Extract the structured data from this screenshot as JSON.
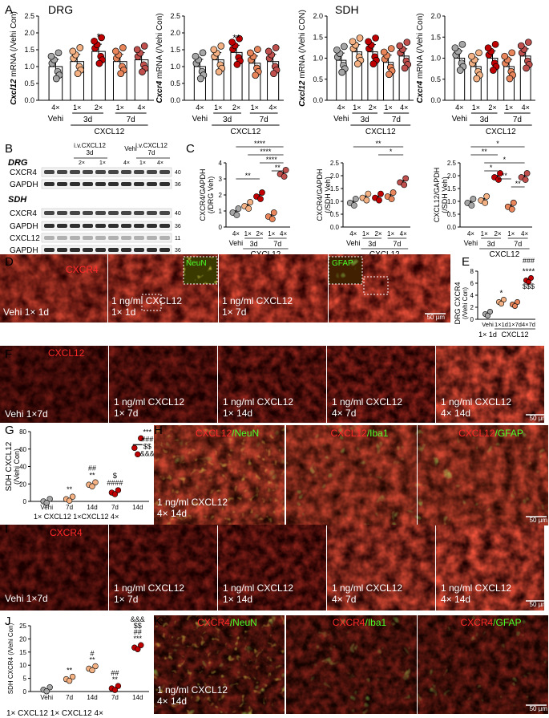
{
  "panel_letters": [
    "A",
    "B",
    "C",
    "D",
    "E",
    "F",
    "G",
    "H",
    "I",
    "J",
    "K"
  ],
  "panel_a": {
    "region_labels": [
      "DRG",
      "SDH"
    ],
    "x_doses": [
      "4×",
      "1×",
      "2×",
      "1×",
      "4×"
    ],
    "vehi": "Vehi",
    "groups": [
      "3d",
      "7d"
    ],
    "treatment": "CXCL12",
    "charts": [
      {
        "ylabel_gene": "Cxcl12",
        "ylabel_rest": " mRNA (/Vehi Con)",
        "ylim": [
          0,
          2.5
        ],
        "yticks": [
          "0.0",
          "0.5",
          "1.0",
          "1.5",
          "2.0",
          "2.5"
        ],
        "values": [
          1.0,
          1.15,
          1.45,
          1.15,
          1.2
        ],
        "sig": [
          "",
          "",
          "*",
          "",
          ""
        ]
      },
      {
        "ylabel_gene": "Cxcr4",
        "ylabel_rest": " mRNA (/Vehi Con)",
        "ylim": [
          0,
          2.5
        ],
        "yticks": [
          "0.0",
          "0.5",
          "1.0",
          "1.5",
          "2.0",
          "2.5"
        ],
        "values": [
          1.0,
          1.2,
          1.42,
          1.1,
          1.15
        ],
        "sig": [
          "",
          "",
          "**",
          "",
          ""
        ]
      },
      {
        "ylabel_gene": "Cxcl12",
        "ylabel_rest": " mRNA (/Vehi CON)",
        "ylim": [
          0,
          2.0
        ],
        "yticks": [
          "0.0",
          "0.5",
          "1.0",
          "1.5",
          "2.0"
        ],
        "values": [
          0.95,
          1.15,
          1.15,
          0.9,
          1.05
        ],
        "sig": [
          "",
          "",
          "",
          "",
          ""
        ]
      },
      {
        "ylabel_gene": "Cxcr4",
        "ylabel_rest": " mRNA (/Vehi Con)",
        "ylim": [
          0,
          2.0
        ],
        "yticks": [
          "0.0",
          "0.5",
          "1.0",
          "1.5",
          "2.0"
        ],
        "values": [
          1.0,
          0.8,
          1.0,
          0.8,
          1.05
        ],
        "sig": [
          "",
          "",
          "",
          "",
          ""
        ]
      }
    ]
  },
  "panel_b": {
    "header_3d": "i.v.CXCL12\n3d",
    "header_vehi": "Vehi",
    "header_7d": "i.v.CXCL12\n7d",
    "lane_labels": [
      "2×",
      "1×",
      "4×",
      "1×",
      "4×"
    ],
    "drg": "DRG",
    "sdh": "SDH",
    "blots": [
      {
        "name": "CXCR4",
        "kda": "40"
      },
      {
        "name": "GAPDH",
        "kda": "36"
      },
      {
        "name": "CXCR4",
        "kda": "40"
      },
      {
        "name": "GAPDH",
        "kda": "36"
      },
      {
        "name": "CXCL12",
        "kda": "11"
      },
      {
        "name": "GAPDH",
        "kda": "36"
      }
    ]
  },
  "panel_c": {
    "x_doses": [
      "4×",
      "1×",
      "2×",
      "1×",
      "4×"
    ],
    "charts": [
      {
        "ylabel": "CXCR4/GAPDH",
        "ylabel2": "(/DRG Veh)",
        "ylim": [
          0,
          4
        ],
        "yticks": [
          "0",
          "1",
          "2",
          "3",
          "4"
        ],
        "values": [
          1.0,
          1.4,
          2.0,
          0.75,
          3.4
        ],
        "brackets": [
          {
            "from": 0,
            "to": 4,
            "text": "****"
          },
          {
            "from": 1,
            "to": 4,
            "text": "****"
          },
          {
            "from": 2,
            "to": 4,
            "text": "****"
          },
          {
            "from": 3,
            "to": 4,
            "text": "**"
          },
          {
            "from": 0,
            "to": 2,
            "text": "**"
          }
        ]
      },
      {
        "ylabel": "CXCR4/GAPDH",
        "ylabel2": "(/SDH Veh)",
        "ylim": [
          0,
          2.5
        ],
        "yticks": [
          "0.0",
          "0.5",
          "1.0",
          "1.5",
          "2.0",
          "2.5"
        ],
        "values": [
          1.0,
          1.2,
          1.2,
          1.25,
          1.8
        ],
        "brackets": [
          {
            "from": 0,
            "to": 4,
            "text": "**"
          },
          {
            "from": 2,
            "to": 4,
            "text": "*"
          }
        ]
      },
      {
        "ylabel": "CXCL12/GAPDH",
        "ylabel2": "(/SDH Veh)",
        "ylim": [
          0,
          2.5
        ],
        "yticks": [
          "0.0",
          "0.5",
          "1.0",
          "1.5",
          "2.0",
          "2.5"
        ],
        "values": [
          1.0,
          1.1,
          2.0,
          0.85,
          2.0
        ],
        "brackets": [
          {
            "from": 0,
            "to": 4,
            "text": "*"
          },
          {
            "from": 0,
            "to": 2,
            "text": "**"
          },
          {
            "from": 1,
            "to": 4,
            "text": "*"
          },
          {
            "from": 1,
            "to": 2,
            "text": "*"
          },
          {
            "from": 2,
            "to": 3,
            "text": "**"
          },
          {
            "from": 3,
            "to": 4,
            "text": "**"
          }
        ]
      }
    ]
  },
  "panel_d": {
    "marker": "CXCR4",
    "insets": [
      "NeuN",
      "GFAP"
    ],
    "captions": [
      "Vehi 1× 1d",
      "1 ng/ml CXCL12\n1× 1d",
      "1 ng/ml CXCL12\n1× 7d",
      ""
    ],
    "scale": "50 µm"
  },
  "panel_e": {
    "ylabel": "DRG CXCR4",
    "ylabel2": "(/Vehi Con)",
    "ylim": [
      0,
      8
    ],
    "yticks": [
      "0",
      "2",
      "4",
      "6",
      "8"
    ],
    "values": [
      1.0,
      3.0,
      2.6,
      6.6
    ],
    "x_labels": [
      "Vehi",
      "1×1d",
      "1×7d",
      "4×7d"
    ],
    "x_bottom": "1× 1d",
    "treatment": "CXCL12",
    "sig": [
      "",
      "*",
      "",
      "****"
    ],
    "sig_top": "###",
    "sig_bottom": "$$$"
  },
  "panel_f": {
    "marker": "CXCL12",
    "captions": [
      "Vehi 1×7d",
      "1 ng/ml CXCL12\n1× 7d",
      "1 ng/ml CXCL12\n1× 14d",
      "1 ng/ml CXCL12\n4× 7d",
      "1 ng/ml CXCL12\n4× 14d"
    ],
    "scale": "50 µm"
  },
  "panel_g": {
    "ylabel": "SDH CXCL12",
    "ylabel2": "(/Vehi Con)",
    "ylim": [
      0,
      80
    ],
    "yticks": [
      "0",
      "20",
      "40",
      "60",
      "80"
    ],
    "values": [
      1.0,
      3.5,
      20.0,
      11.0,
      65.0
    ],
    "x_labels": [
      "Vehi",
      "7d",
      "14d",
      "7d",
      "14d"
    ],
    "x_bottom": "1× CXCL12 1×CXCL12 4×",
    "sig_stacks": [
      [],
      [
        "**"
      ],
      [
        "##",
        "**"
      ],
      [
        "$",
        "####"
      ],
      [
        "***",
        "###",
        "$$",
        "&&&"
      ]
    ]
  },
  "panel_h": {
    "titles": [
      {
        "a": "CXCL12",
        "b": "/NeuN"
      },
      {
        "a": "CXCL12",
        "b": "/Iba1"
      },
      {
        "a": "CXCL12",
        "b": "/GFAP"
      }
    ],
    "caption": "1 ng/ml CXCL12\n4× 14d",
    "scale": "50 µm"
  },
  "panel_i": {
    "marker": "CXCR4",
    "captions": [
      "Vehi 1×7d",
      "1 ng/ml CXCL12\n1× 7d",
      "1 ng/ml CXCL12\n1× 14d",
      "1 ng/ml CXCL12\n4× 7d",
      "1 ng/ml CXCL12\n4× 14d"
    ],
    "scale": "50 µm"
  },
  "panel_j": {
    "ylabel": "SDH CXCR4 (/Vehi Con)",
    "ylim": [
      0,
      25
    ],
    "yticks": [
      "0",
      "5",
      "10",
      "15",
      "20",
      "25"
    ],
    "values": [
      1.0,
      5.0,
      9.0,
      1.5,
      17.0
    ],
    "x_labels": [
      "Vehi",
      "7d",
      "14d",
      "7d",
      "14d"
    ],
    "x_bottom": "1× CXCL12 1× CXCL12 4×",
    "sig_stacks": [
      [],
      [
        "**"
      ],
      [
        "#",
        "**"
      ],
      [
        "##",
        "**"
      ],
      [
        "&&&",
        "$$",
        "##",
        "***"
      ]
    ]
  },
  "panel_k": {
    "titles": [
      {
        "a": "CXCR4",
        "b": "/NeuN"
      },
      {
        "a": "CXCR4",
        "b": "/Iba1"
      },
      {
        "a": "CXCR4",
        "b": "/GFAP"
      }
    ],
    "caption": "1 ng/ml CXCL12\n4× 14d",
    "scale": "50 µm"
  },
  "colors": {
    "vehi": "#a6a6a6",
    "d3_1x": "#f4b183",
    "d3_2x": "#c00000",
    "d7_1x": "#e9855a",
    "d7_4x": "#c0504d",
    "micro_red": "#d42a1e",
    "micro_green": "#3fc31f"
  }
}
